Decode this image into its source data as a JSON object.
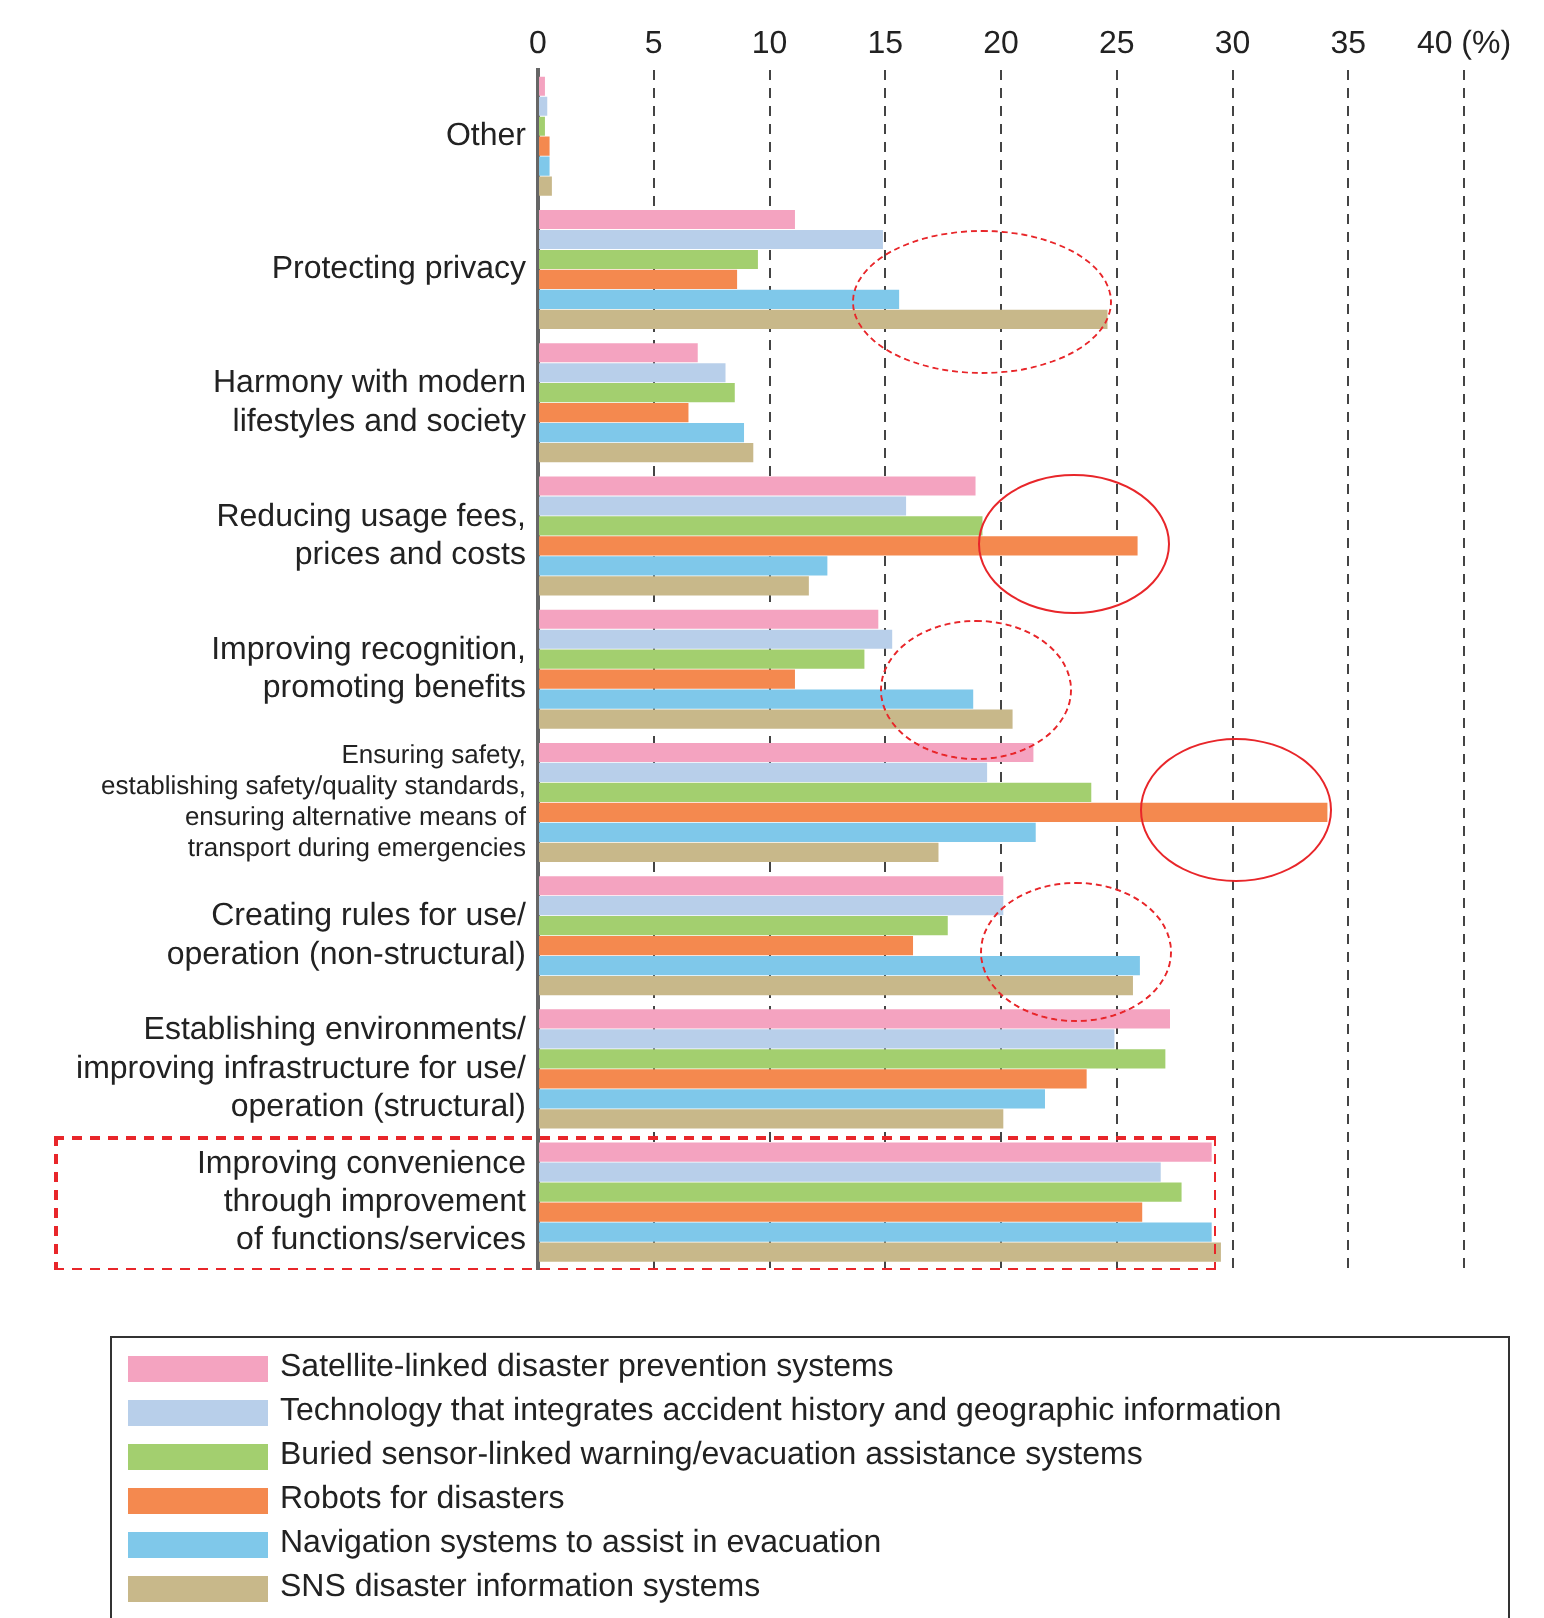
{
  "chart_data": {
    "type": "bar",
    "orientation": "horizontal",
    "categories": [
      "Other",
      "Protecting privacy",
      "Harmony with modern\nlifestyles and society",
      "Reducing usage fees,\nprices and costs",
      "Improving recognition,\npromoting benefits",
      "Ensuring safety,\nestablishing safety/quality standards,\nensuring alternative means of\ntransport during emergencies",
      "Creating rules for use/\noperation (non-structural)",
      "Establishing environments/\nimproving infrastructure for use/\noperation (structural)",
      "Improving convenience\nthrough improvement\nof functions/services"
    ],
    "series": [
      {
        "name": "Satellite-linked disaster prevention systems",
        "color": "#f4a3c0",
        "values": [
          0.3,
          11.1,
          6.9,
          18.9,
          14.7,
          21.4,
          20.1,
          27.3,
          29.1
        ]
      },
      {
        "name": "Technology that integrates accident history and geographic information",
        "color": "#b8cfea",
        "values": [
          0.4,
          14.9,
          8.1,
          15.9,
          15.3,
          19.4,
          20.1,
          24.9,
          26.9
        ]
      },
      {
        "name": "Buried sensor-linked warning/evacuation assistance systems",
        "color": "#a3cf6f",
        "values": [
          0.3,
          9.5,
          8.5,
          19.2,
          14.1,
          23.9,
          17.7,
          27.1,
          27.8
        ]
      },
      {
        "name": "Robots for disasters",
        "color": "#f4894f",
        "values": [
          0.5,
          8.6,
          6.5,
          25.9,
          11.1,
          34.1,
          16.2,
          23.7,
          26.1
        ]
      },
      {
        "name": "Navigation systems to assist in evacuation",
        "color": "#7fc8ea",
        "values": [
          0.5,
          15.6,
          8.9,
          12.5,
          18.8,
          21.5,
          26.0,
          21.9,
          29.1
        ]
      },
      {
        "name": "SNS disaster information systems",
        "color": "#c8b88a",
        "values": [
          0.6,
          24.6,
          9.3,
          11.7,
          20.5,
          17.3,
          25.7,
          20.1,
          29.5
        ]
      }
    ],
    "xlim": [
      0,
      40
    ],
    "xticks": [
      0,
      5,
      10,
      15,
      20,
      25,
      30,
      35,
      {
        "value": 40,
        "label": "40 (%)"
      }
    ],
    "grid": "x",
    "legend": "bottom"
  }
}
